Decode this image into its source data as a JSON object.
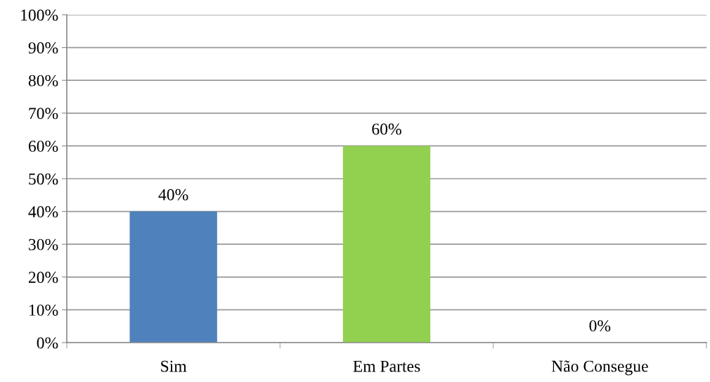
{
  "chart_data": {
    "type": "bar",
    "categories": [
      "Sim",
      "Em Partes",
      "Não Consegue"
    ],
    "values": [
      40,
      60,
      0
    ],
    "colors": [
      "#4f81bd",
      "#92d050",
      "#4f81bd"
    ],
    "value_labels": [
      "40%",
      "60%",
      "0%"
    ],
    "ylim": [
      0,
      100
    ],
    "yticks": [
      {
        "value": 0,
        "label": "0%"
      },
      {
        "value": 10,
        "label": "10%"
      },
      {
        "value": 20,
        "label": "20%"
      },
      {
        "value": 30,
        "label": "30%"
      },
      {
        "value": 40,
        "label": "40%"
      },
      {
        "value": 50,
        "label": "50%"
      },
      {
        "value": 60,
        "label": "60%"
      },
      {
        "value": 70,
        "label": "70%"
      },
      {
        "value": 80,
        "label": "80%"
      },
      {
        "value": 90,
        "label": "90%"
      },
      {
        "value": 100,
        "label": "100%"
      }
    ],
    "grid": "y",
    "legend": false
  }
}
